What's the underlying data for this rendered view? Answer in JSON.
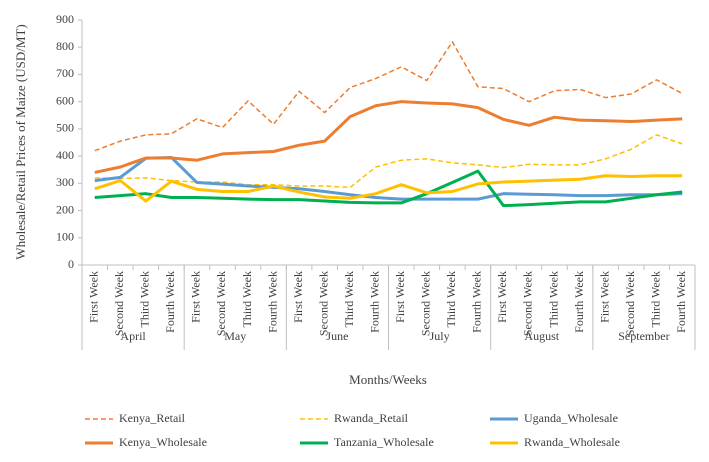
{
  "chart_data": {
    "type": "line",
    "y_label": "Wholesale/Retail Prices of Maize (USD/MT)",
    "x_label": "Months/Weeks",
    "categories": [
      "First Week",
      "Second Week",
      "Third Week",
      "Fourth Week",
      "First Week",
      "Second Week",
      "Third Week",
      "Fourth Week",
      "First Week",
      "Second Week",
      "Third Week",
      "Fourth Week",
      "First Week",
      "Second Week",
      "Third Week",
      "Fourth Week",
      "First Week",
      "Second Week",
      "Third Week",
      "Fourth Week",
      "First Week",
      "Second Week",
      "Third Week",
      "Fourth Week"
    ],
    "groups": [
      "April",
      "May",
      "June",
      "July",
      "August",
      "September"
    ],
    "ylim": [
      0,
      900
    ],
    "yticks": [
      0,
      100,
      200,
      300,
      400,
      500,
      600,
      700,
      800,
      900
    ],
    "legend": "bottom",
    "series": [
      {
        "name": "Kenya_Retail",
        "color": "#ED7D31",
        "line_style": "dashed",
        "values": [
          420,
          455,
          478,
          482,
          537,
          505,
          603,
          517,
          638,
          560,
          652,
          685,
          728,
          678,
          820,
          655,
          648,
          600,
          640,
          645,
          615,
          628,
          680,
          630
        ]
      },
      {
        "name": "Rwanda_Retail",
        "color": "#FFC000",
        "line_style": "dashed",
        "values": [
          320,
          318,
          320,
          310,
          305,
          305,
          295,
          295,
          290,
          290,
          285,
          360,
          385,
          390,
          375,
          368,
          358,
          370,
          368,
          368,
          390,
          425,
          478,
          445
        ]
      },
      {
        "name": "Uganda_Wholesale",
        "color": "#5B9BD5",
        "line_style": "solid",
        "values": [
          310,
          322,
          392,
          395,
          303,
          297,
          290,
          285,
          280,
          270,
          258,
          248,
          242,
          242,
          242,
          242,
          262,
          260,
          258,
          255,
          255,
          258,
          258,
          262
        ]
      },
      {
        "name": "Kenya_Wholesale",
        "color": "#ED7D31",
        "line_style": "solid",
        "values": [
          340,
          360,
          393,
          393,
          385,
          408,
          413,
          417,
          440,
          455,
          545,
          585,
          600,
          595,
          592,
          578,
          535,
          513,
          543,
          532,
          530,
          527,
          532,
          537
        ]
      },
      {
        "name": "Tanzania_Wholesale",
        "color": "#00B050",
        "line_style": "solid",
        "values": [
          248,
          255,
          262,
          248,
          248,
          245,
          242,
          240,
          240,
          235,
          230,
          228,
          228,
          262,
          303,
          345,
          218,
          222,
          227,
          232,
          232,
          245,
          258,
          268
        ]
      },
      {
        "name": "Rwanda_Wholesale",
        "color": "#FFC000",
        "line_style": "solid",
        "values": [
          280,
          310,
          235,
          308,
          278,
          270,
          270,
          290,
          268,
          250,
          245,
          262,
          295,
          265,
          270,
          298,
          305,
          308,
          312,
          315,
          328,
          325,
          328,
          328
        ]
      }
    ]
  }
}
